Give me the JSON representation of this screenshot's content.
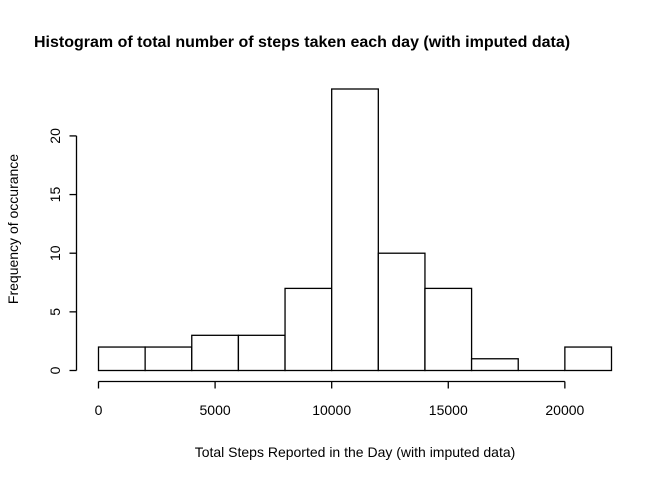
{
  "chart_data": {
    "type": "bar",
    "title": "Histogram of total number of steps taken each day (with imputed data)",
    "xlabel": "Total Steps Reported in the Day (with imputed data)",
    "ylabel": "Frequency of occurance",
    "bin_edges": [
      0,
      2000,
      4000,
      6000,
      8000,
      10000,
      12000,
      14000,
      16000,
      18000,
      20000,
      22000
    ],
    "counts": [
      2,
      2,
      3,
      3,
      7,
      24,
      10,
      7,
      1,
      0,
      2
    ],
    "xlim": [
      0,
      22000
    ],
    "ylim": [
      0,
      24
    ],
    "x_ticks": [
      0,
      5000,
      10000,
      15000,
      20000
    ],
    "y_ticks": [
      0,
      5,
      10,
      15,
      20
    ],
    "grid": false,
    "colors": {
      "bar_fill": "#ffffff",
      "bar_stroke": "#000000"
    }
  }
}
